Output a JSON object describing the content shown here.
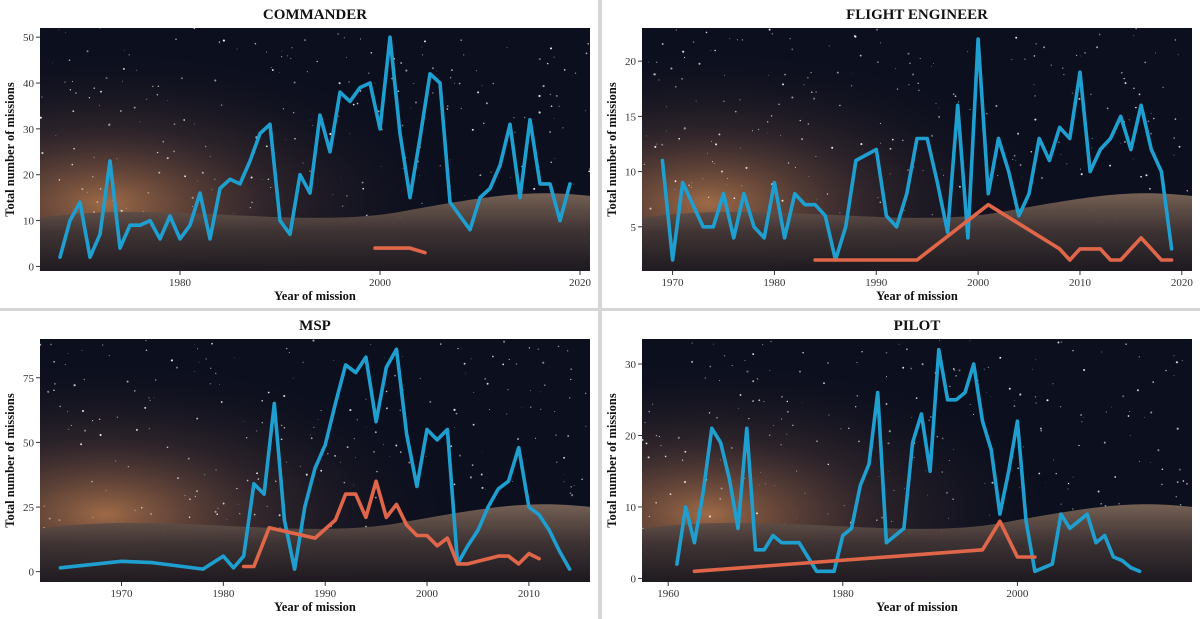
{
  "colors": {
    "series_blue": "#1f9fd0",
    "series_orange": "#e0664a",
    "sky_dark": "#0c0f1e",
    "horizon_glow": "#b87a4e",
    "panel_bg": "#ffffff",
    "separator": "#d6d6d6"
  },
  "chart_data": [
    {
      "type": "line",
      "title": "COMMANDER",
      "xlabel": "Year of mission",
      "ylabel": "Total number of missions",
      "xlim": [
        1966,
        2021
      ],
      "ylim": [
        -1,
        52
      ],
      "xticks": [
        1980,
        2000,
        2020
      ],
      "yticks": [
        0,
        10,
        20,
        30,
        40,
        50
      ],
      "grid": false,
      "series": [
        {
          "color": "#1f9fd0",
          "x": [
            1968,
            1969,
            1970,
            1971,
            1972,
            1973,
            1974,
            1975,
            1976,
            1977,
            1978,
            1979,
            1980,
            1981,
            1982,
            1983,
            1984,
            1985,
            1986,
            1987,
            1988,
            1989,
            1990,
            1991,
            1992,
            1993,
            1994,
            1995,
            1996,
            1997,
            1998,
            1999,
            2000,
            2001,
            2002,
            2003,
            2004,
            2005,
            2006,
            2007,
            2008,
            2009,
            2010,
            2011,
            2012,
            2013,
            2014,
            2015,
            2016,
            2017,
            2018,
            2019
          ],
          "y": [
            2,
            10,
            14,
            2,
            7,
            23,
            4,
            9,
            9,
            10,
            6,
            11,
            6,
            9,
            16,
            6,
            17,
            19,
            18,
            23,
            29,
            31,
            10,
            7,
            20,
            16,
            33,
            25,
            38,
            36,
            39,
            40,
            30,
            50,
            29,
            15,
            28,
            42,
            40,
            14,
            11,
            8,
            15,
            17,
            22,
            31,
            15,
            32,
            18,
            18,
            10,
            18
          ]
        },
        {
          "color": "#e0664a",
          "x": [
            1999.5,
            2003,
            2004.5
          ],
          "y": [
            4,
            4,
            3
          ]
        }
      ]
    },
    {
      "type": "line",
      "title": "FLIGHT ENGINEER",
      "xlabel": "Year of mission",
      "ylabel": "Total number of missions",
      "xlim": [
        1967,
        2021
      ],
      "ylim": [
        1,
        23
      ],
      "xticks": [
        1970,
        1980,
        1990,
        2000,
        2010,
        2020
      ],
      "yticks": [
        5,
        10,
        15,
        20
      ],
      "grid": false,
      "series": [
        {
          "color": "#1f9fd0",
          "x": [
            1969,
            1970,
            1971,
            1972,
            1973,
            1974,
            1975,
            1976,
            1977,
            1978,
            1979,
            1980,
            1981,
            1982,
            1983,
            1984,
            1985,
            1986,
            1987,
            1988,
            1989,
            1990,
            1991,
            1992,
            1993,
            1994,
            1995,
            1996,
            1997,
            1998,
            1999,
            2000,
            2001,
            2002,
            2003,
            2004,
            2005,
            2006,
            2007,
            2008,
            2009,
            2010,
            2011,
            2012,
            2013,
            2014,
            2015,
            2016,
            2017,
            2018,
            2019
          ],
          "y": [
            11,
            2,
            9,
            7,
            5,
            5,
            8,
            4,
            8,
            5,
            4,
            9,
            4,
            8,
            7,
            7,
            6,
            2,
            5,
            11,
            11.5,
            12,
            6,
            5,
            8,
            13,
            13,
            9,
            4.5,
            16,
            4,
            22,
            8,
            13,
            10,
            6,
            8,
            13,
            11,
            14,
            13,
            19,
            10,
            12,
            13,
            15,
            12,
            16,
            12,
            10,
            3
          ]
        },
        {
          "color": "#e0664a",
          "x": [
            1984,
            1994,
            2001,
            2008,
            2009,
            2010,
            2011,
            2012,
            2013,
            2014,
            2015,
            2016,
            2017,
            2018,
            2019
          ],
          "y": [
            2,
            2,
            7,
            3,
            2,
            3,
            3,
            3,
            2,
            2,
            3,
            4,
            3,
            2,
            2
          ]
        }
      ]
    },
    {
      "type": "line",
      "title": "MSP",
      "xlabel": "Year of mission",
      "ylabel": "Total number of missions",
      "xlim": [
        1962,
        2016
      ],
      "ylim": [
        -4,
        90
      ],
      "xticks": [
        1970,
        1980,
        1990,
        2000,
        2010
      ],
      "yticks": [
        0,
        25,
        50,
        75
      ],
      "grid": false,
      "series": [
        {
          "color": "#1f9fd0",
          "x": [
            1964,
            1970,
            1973,
            1976,
            1978,
            1980,
            1981,
            1982,
            1983,
            1984,
            1985,
            1986,
            1987,
            1988,
            1989,
            1990,
            1991,
            1992,
            1993,
            1994,
            1995,
            1996,
            1997,
            1998,
            1999,
            2000,
            2001,
            2002,
            2003,
            2004,
            2005,
            2006,
            2007,
            2008,
            2009,
            2010,
            2011,
            2012,
            2013,
            2014
          ],
          "y": [
            1.5,
            4,
            3.5,
            2,
            1,
            6,
            1.5,
            6,
            34,
            30,
            65,
            20,
            1,
            25,
            40,
            49,
            65,
            80,
            77,
            83,
            58,
            79,
            86,
            53,
            33,
            55,
            51,
            55,
            3,
            10,
            16,
            25,
            32,
            35,
            48,
            25,
            22,
            16,
            8,
            1
          ]
        },
        {
          "color": "#e0664a",
          "x": [
            1982,
            1983,
            1984.5,
            1989,
            1991,
            1992,
            1993,
            1994,
            1995,
            1996,
            1997,
            1998,
            1999,
            2000,
            2001,
            2002,
            2003,
            2004,
            2005,
            2006,
            2007,
            2008,
            2009,
            2010,
            2011
          ],
          "y": [
            2,
            2,
            17,
            13,
            20,
            30,
            30,
            21,
            35,
            21,
            26,
            18,
            14,
            14,
            10,
            13,
            3,
            3,
            4,
            5,
            6,
            6,
            3,
            7,
            5
          ]
        }
      ]
    },
    {
      "type": "line",
      "title": "PILOT",
      "xlabel": "Year of mission",
      "ylabel": "Total number of missions",
      "xlim": [
        1957,
        2020
      ],
      "ylim": [
        -0.5,
        33.5
      ],
      "xticks": [
        1960,
        1980,
        2000
      ],
      "yticks": [
        0,
        10,
        20,
        30
      ],
      "grid": false,
      "series": [
        {
          "color": "#1f9fd0",
          "x": [
            1961,
            1962,
            1963,
            1964,
            1965,
            1966,
            1967,
            1968,
            1969,
            1970,
            1971,
            1972,
            1973,
            1974,
            1975,
            1976,
            1977,
            1978,
            1979,
            1980,
            1981,
            1982,
            1983,
            1984,
            1985,
            1986,
            1987,
            1988,
            1989,
            1990,
            1991,
            1992,
            1993,
            1994,
            1995,
            1996,
            1997,
            1998,
            1999,
            2000,
            2001,
            2002,
            2003,
            2004,
            2005,
            2006,
            2007,
            2008,
            2009,
            2010,
            2011,
            2012,
            2013,
            2014,
            2015,
            2016,
            2017,
            2018
          ],
          "y": [
            2,
            10,
            5,
            12,
            21,
            19,
            14,
            7,
            21,
            4,
            4,
            6,
            5,
            5,
            5,
            3,
            1,
            1,
            1,
            6,
            7,
            13,
            16,
            26,
            5,
            6,
            7,
            19,
            23,
            15,
            32,
            25,
            25,
            26,
            30,
            22,
            18,
            9,
            15,
            22,
            8,
            1,
            1.5,
            2,
            9,
            7,
            8,
            9,
            5,
            6,
            3,
            2.5,
            1.5,
            1,
            null,
            null,
            null,
            null
          ]
        },
        {
          "color": "#e0664a",
          "x": [
            1963,
            1996,
            1998,
            2000,
            2001,
            2002
          ],
          "y": [
            1,
            4,
            8,
            3,
            3,
            3
          ]
        }
      ]
    }
  ]
}
